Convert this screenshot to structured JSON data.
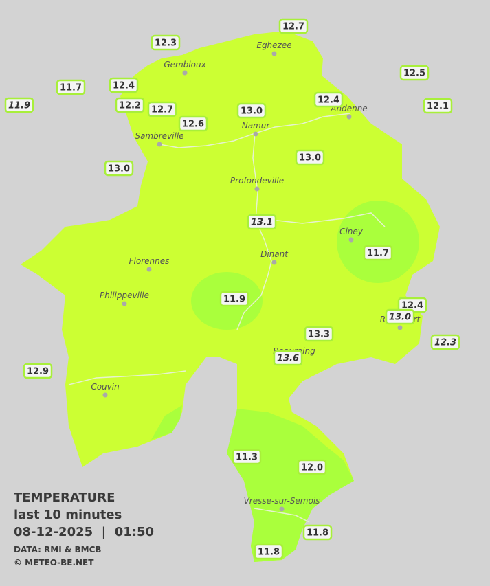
{
  "title": {
    "heading": "TEMPERATURE",
    "period": "last 10 minutes",
    "timestamp": "08-12-2025  |  01:50",
    "source": "DATA: RMI & BMCB",
    "credit": "© METEO-BE.NET"
  },
  "cities": [
    "Eghezee",
    "Gembloux",
    "Andenne",
    "Namur",
    "Sambreville",
    "Profondeville",
    "Ciney",
    "Dinant",
    "Florennes",
    "Philippeville",
    "Rochefort",
    "Beauraing",
    "Couvin",
    "Vresse-sur-Semois"
  ],
  "stations": [
    "12.7",
    "12.3",
    "12.5",
    "11.7",
    "12.4",
    "11.9",
    "12.2",
    "12.7",
    "12.4",
    "13.0",
    "12.1",
    "12.6",
    "13.0",
    "13.0",
    "13.1",
    "11.7",
    "11.9",
    "12.4",
    "13.0",
    "13.3",
    "12.3",
    "13.6",
    "12.9",
    "11.3",
    "12.0",
    "11.8",
    "11.8"
  ]
}
